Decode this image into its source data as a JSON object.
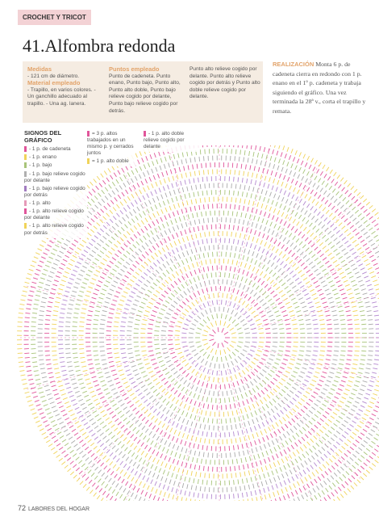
{
  "header": {
    "section": "CROCHET Y TRICOT",
    "title": "41.Alfombra redonda"
  },
  "materials": {
    "size_label": "Medidas",
    "size_text": "- 121 cm de diámetro.",
    "material_label": "Material empleado",
    "material_text": "- Trapillo, en varios colores. - Un ganchillo adecuado al trapillo. - Una ag. lanera.",
    "stitches_label": "Puntos empleado",
    "stitches_text": "Punto de cadeneta. Punto enano, Punto bajo, Punto alto, Punto alto doble, Punto bajo relieve cogido por delante, Punto bajo relieve cogido por detrás.",
    "stitches_text_2": "Punto alto relieve cogido por delante. Punto alto relieve cogido por detrás y Punto alto doble relieve cogido por delante."
  },
  "realization": {
    "label": "REALIZACIÓN",
    "text": "Monta 6 p. de cadeneta cierra en redondo con 1 p. enano en el 1º p. cadeneta y trabaja siguiendo el gráfico. Una vez terminada la 28ª v., corta el trapillo y remata."
  },
  "legend": {
    "title": "SIGNOS DEL GRÁFICO",
    "items": [
      "- 1 p. de cadeneta",
      "- 1 p. enano",
      "- 1 p. bajo",
      "- 1 p. bajo relieve cogido por delante",
      "- 1 p. bajo relieve cogido por detrás",
      "- 1 p. alto",
      "- 1 p. alto relieve cogido por delante",
      "- 1 p. alto relieve cogido por detrás"
    ],
    "items_2": [
      "= 3 p. altos trabajados en un mismo p. y cerrados juntos",
      "= 1 p. alto doble"
    ],
    "items_3": [
      "- 1 p. alto doble relieve cogido por delante"
    ]
  },
  "footer": {
    "page": "72",
    "magazine": "LABORES DEL HOGAR"
  }
}
